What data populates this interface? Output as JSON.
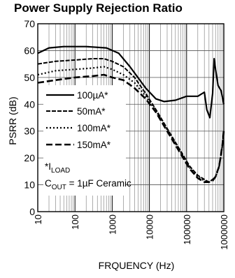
{
  "chart_data": {
    "type": "line",
    "title": "Power Supply Rejection Ratio",
    "xlabel": "FRQUENCY (Hz)",
    "ylabel": "PSRR (dB)",
    "x_scale": "log",
    "xlim": [
      10,
      1000000
    ],
    "ylim": [
      0,
      70
    ],
    "grid": true,
    "x_ticks": [
      {
        "value": 10,
        "label": "10"
      },
      {
        "value": 100,
        "label": "100"
      },
      {
        "value": 1000,
        "label": "1000"
      },
      {
        "value": 10000,
        "label": "10000"
      },
      {
        "value": 100000,
        "label": "100000"
      },
      {
        "value": 1000000,
        "label": "1000000"
      }
    ],
    "y_ticks": [
      {
        "value": 0,
        "label": "0"
      },
      {
        "value": 10,
        "label": "10"
      },
      {
        "value": 20,
        "label": "20"
      },
      {
        "value": 30,
        "label": "30"
      },
      {
        "value": 40,
        "label": "40"
      },
      {
        "value": 50,
        "label": "50"
      },
      {
        "value": 60,
        "label": "60"
      },
      {
        "value": 70,
        "label": "70"
      }
    ],
    "series": [
      {
        "name": "100µA*",
        "dash": "solid",
        "points": [
          [
            10,
            59
          ],
          [
            20,
            61
          ],
          [
            50,
            61.5
          ],
          [
            200,
            61.5
          ],
          [
            700,
            61
          ],
          [
            1500,
            59
          ],
          [
            3000,
            54
          ],
          [
            8000,
            46
          ],
          [
            15000,
            42
          ],
          [
            25000,
            41
          ],
          [
            50000,
            41.5
          ],
          [
            100000,
            43
          ],
          [
            200000,
            43
          ],
          [
            300000,
            44.5
          ],
          [
            350000,
            38
          ],
          [
            420000,
            35
          ],
          [
            500000,
            44
          ],
          [
            550000,
            57
          ],
          [
            600000,
            53
          ],
          [
            700000,
            47
          ],
          [
            850000,
            45
          ],
          [
            1000000,
            40
          ]
        ]
      },
      {
        "name": "50mA*",
        "dash": "dashed",
        "points": [
          [
            10,
            55
          ],
          [
            30,
            56
          ],
          [
            100,
            56.5
          ],
          [
            300,
            57
          ],
          [
            600,
            57
          ],
          [
            1000,
            56
          ],
          [
            2000,
            54
          ],
          [
            4000,
            50
          ],
          [
            8000,
            44
          ],
          [
            15000,
            38
          ],
          [
            30000,
            31
          ],
          [
            60000,
            24
          ],
          [
            120000,
            17
          ],
          [
            200000,
            13.5
          ],
          [
            300000,
            12
          ],
          [
            400000,
            11
          ],
          [
            500000,
            12
          ],
          [
            600000,
            13
          ],
          [
            750000,
            17
          ],
          [
            900000,
            24
          ],
          [
            1000000,
            30
          ]
        ]
      },
      {
        "name": "100mA*",
        "dash": "dotted",
        "points": [
          [
            10,
            51
          ],
          [
            30,
            52.5
          ],
          [
            100,
            53
          ],
          [
            300,
            53.5
          ],
          [
            600,
            54
          ],
          [
            1000,
            53
          ],
          [
            2000,
            51
          ],
          [
            4000,
            48
          ],
          [
            8000,
            43
          ],
          [
            15000,
            37.5
          ],
          [
            30000,
            30.5
          ],
          [
            60000,
            23.5
          ],
          [
            120000,
            16.5
          ],
          [
            200000,
            13
          ],
          [
            300000,
            11.5
          ],
          [
            400000,
            11
          ],
          [
            500000,
            12
          ],
          [
            600000,
            13
          ],
          [
            750000,
            17
          ],
          [
            900000,
            24
          ],
          [
            1000000,
            30
          ]
        ]
      },
      {
        "name": "150mA*",
        "dash": "longdash",
        "points": [
          [
            10,
            48
          ],
          [
            30,
            49
          ],
          [
            100,
            50
          ],
          [
            300,
            50.5
          ],
          [
            600,
            51
          ],
          [
            1000,
            50
          ],
          [
            2000,
            49
          ],
          [
            4000,
            46
          ],
          [
            8000,
            42
          ],
          [
            15000,
            37
          ],
          [
            30000,
            30
          ],
          [
            60000,
            23
          ],
          [
            120000,
            16
          ],
          [
            200000,
            12.5
          ],
          [
            300000,
            11
          ],
          [
            400000,
            11
          ],
          [
            500000,
            11.5
          ],
          [
            600000,
            13
          ],
          [
            750000,
            17
          ],
          [
            900000,
            24
          ],
          [
            1000000,
            30
          ]
        ]
      }
    ],
    "legend": {
      "placement": "left-middle",
      "footnote_line1": "*I",
      "footnote_line1_sub": "LOAD",
      "footnote_line2_pre": "C",
      "footnote_line2_sub": "OUT",
      "footnote_line2_post": " = 1µF Ceramic"
    }
  }
}
